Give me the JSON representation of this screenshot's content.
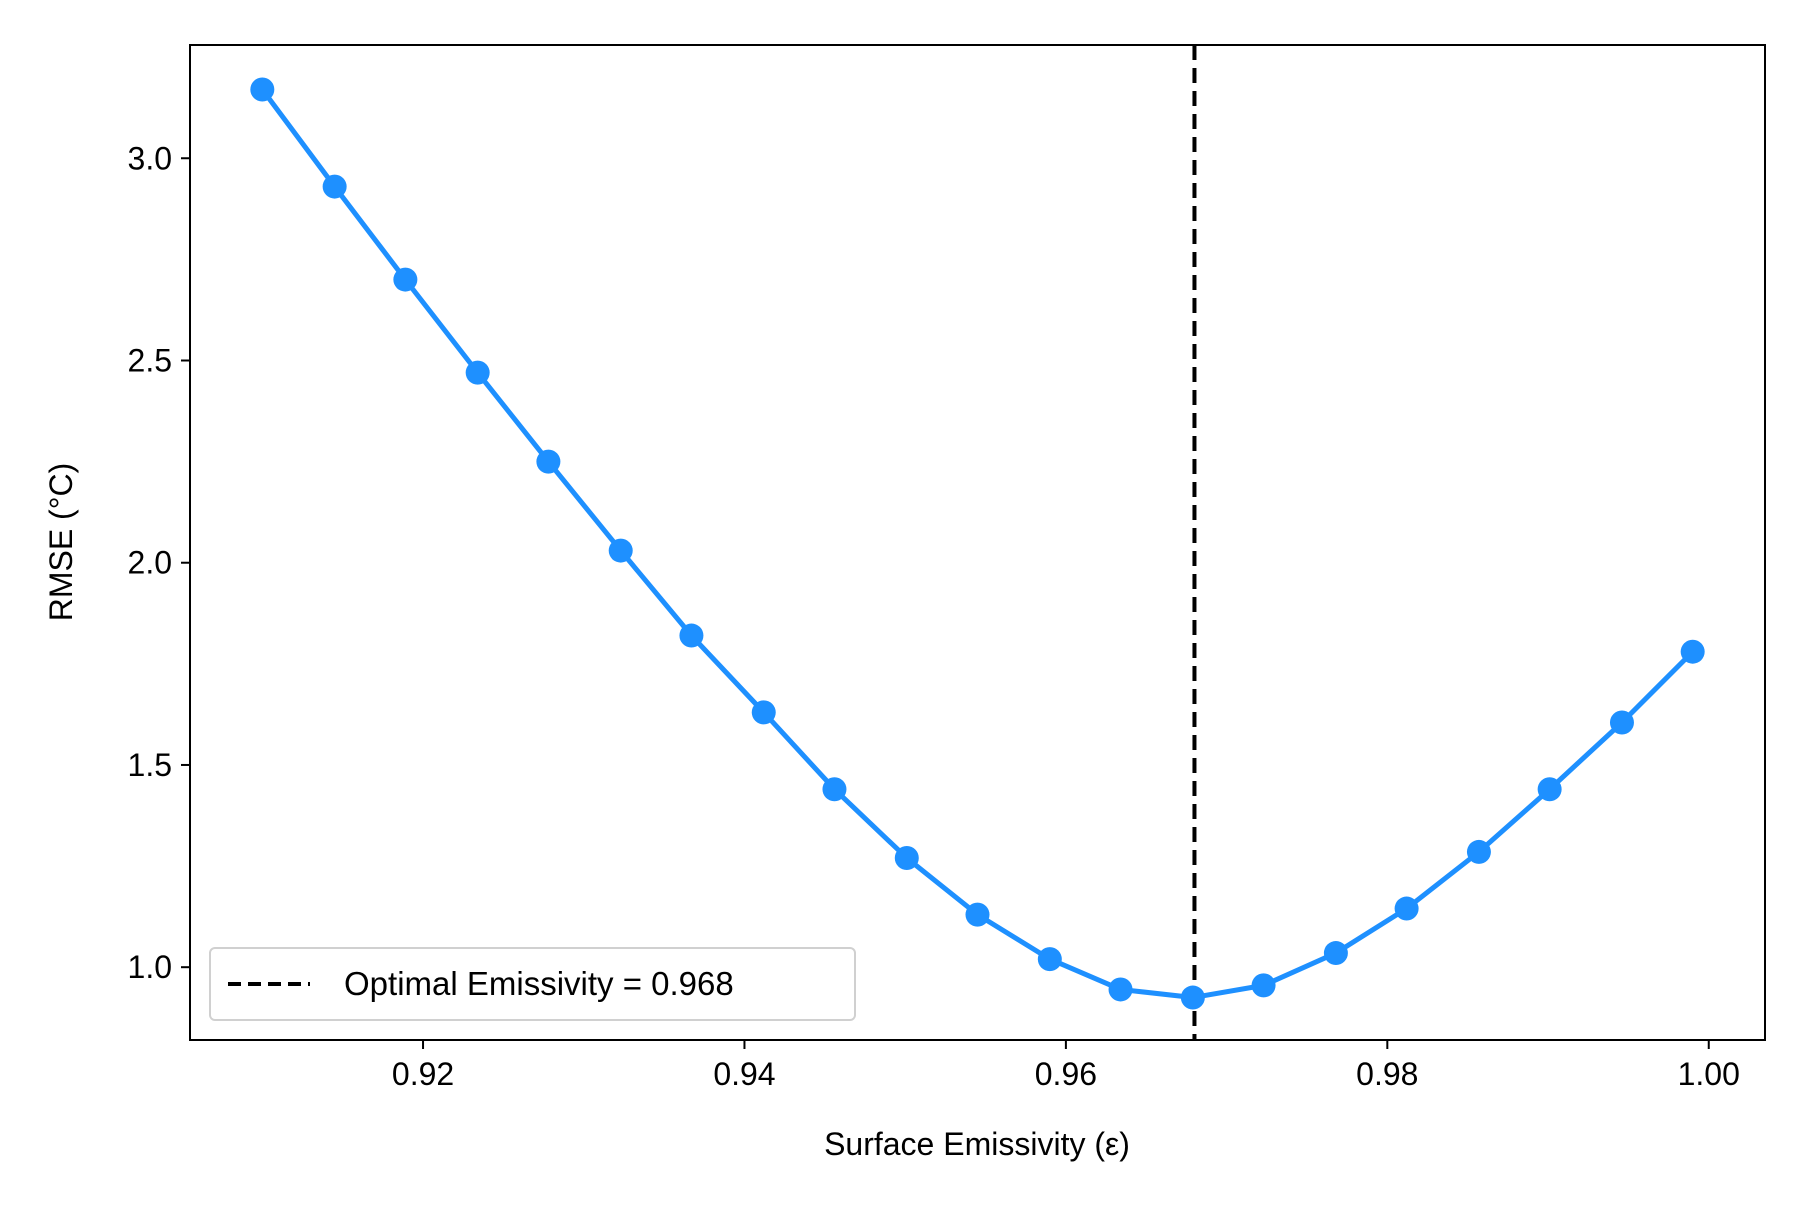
{
  "chart_data": {
    "type": "line",
    "title": "",
    "xlabel": "Surface Emissivity (ε)",
    "ylabel": "RMSE (°C)",
    "xlim": [
      0.9055,
      1.0035
    ],
    "ylim": [
      0.82,
      3.28
    ],
    "x_ticks": [
      0.92,
      0.94,
      0.96,
      0.98,
      1.0
    ],
    "x_tick_labels": [
      "0.92",
      "0.94",
      "0.96",
      "0.98",
      "1.00"
    ],
    "y_ticks": [
      1.0,
      1.5,
      2.0,
      2.5,
      3.0
    ],
    "y_tick_labels": [
      "1.0",
      "1.5",
      "2.0",
      "2.5",
      "3.0"
    ],
    "grid": false,
    "legend_position": "lower-left",
    "series": [
      {
        "color": "#1e90ff",
        "marker": "circle",
        "x": [
          0.91,
          0.9145,
          0.9189,
          0.9234,
          0.9278,
          0.9323,
          0.9367,
          0.9412,
          0.9456,
          0.9501,
          0.9545,
          0.959,
          0.9634,
          0.9679,
          0.9723,
          0.9768,
          0.9812,
          0.9857,
          0.9901,
          0.9946,
          0.999
        ],
        "y": [
          3.17,
          2.93,
          2.7,
          2.47,
          2.25,
          2.03,
          1.82,
          1.63,
          1.44,
          1.27,
          1.13,
          1.02,
          0.945,
          0.925,
          0.955,
          1.035,
          1.145,
          1.285,
          1.44,
          1.605,
          1.78
        ]
      }
    ],
    "reference_lines": [
      {
        "orientation": "vertical",
        "x": 0.968,
        "style": "dashed",
        "color": "#000000",
        "label": "Optimal Emissivity = 0.968"
      }
    ]
  }
}
